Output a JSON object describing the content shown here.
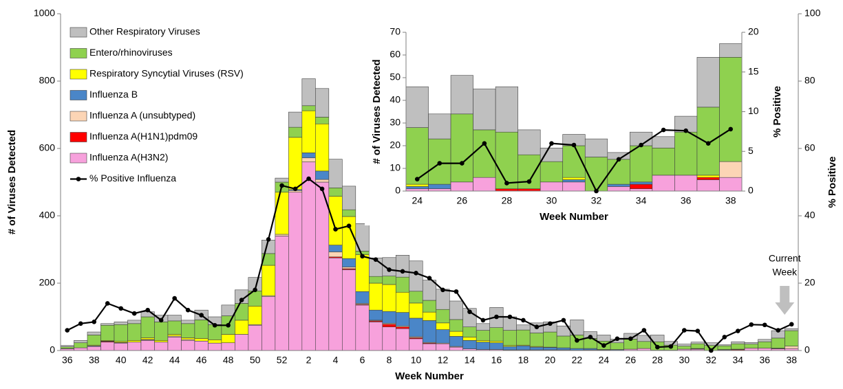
{
  "chart_data": [
    {
      "type": "bar",
      "stacked": true,
      "x_label": "Week Number",
      "y_label": "# of Viruses Detected",
      "y2_label": "% Positive",
      "annotation": [
        "Current",
        "Week"
      ],
      "legend": "upper left",
      "categories": [
        36,
        null,
        38,
        null,
        40,
        null,
        42,
        null,
        44,
        null,
        46,
        null,
        48,
        null,
        50,
        null,
        52,
        null,
        2,
        null,
        4,
        null,
        6,
        null,
        8,
        null,
        10,
        null,
        12,
        null,
        14,
        null,
        16,
        null,
        18,
        null,
        20,
        null,
        22,
        null,
        24,
        null,
        26,
        null,
        28,
        null,
        30,
        null,
        32,
        null,
        34,
        null,
        36,
        null,
        38
      ],
      "ylim": [
        0,
        1000
      ],
      "yticks": [
        0,
        200,
        400,
        600,
        800,
        1000
      ],
      "y2lim": [
        0,
        100
      ],
      "y2ticks": [
        0,
        20,
        40,
        60,
        80,
        100
      ],
      "series": [
        {
          "name": "Influenza A(H3N2)",
          "color": "#f7a1dc",
          "values": [
            5,
            8,
            12,
            25,
            22,
            25,
            30,
            25,
            40,
            30,
            28,
            22,
            23,
            48,
            75,
            160,
            340,
            470,
            560,
            500,
            275,
            240,
            135,
            85,
            70,
            65,
            35,
            20,
            20,
            10,
            5,
            3,
            3,
            2,
            2,
            2,
            2,
            2,
            1,
            2,
            1,
            1,
            4,
            6,
            0,
            0,
            4,
            4,
            0,
            2,
            1,
            7,
            7,
            5,
            6
          ]
        },
        {
          "name": "Influenza A(H1N1)pdm09",
          "color": "#ff0000",
          "values": [
            0,
            0,
            0,
            2,
            0,
            0,
            0,
            0,
            0,
            0,
            0,
            0,
            0,
            0,
            0,
            0,
            0,
            0,
            0,
            0,
            3,
            3,
            2,
            3,
            8,
            5,
            3,
            2,
            0,
            0,
            0,
            0,
            0,
            0,
            0,
            0,
            0,
            0,
            0,
            0,
            0,
            0,
            0,
            0,
            1,
            1,
            0,
            0,
            0,
            0,
            2,
            0,
            0,
            1,
            0
          ]
        },
        {
          "name": "Influenza A (unsubtyped)",
          "color": "#fcd5b5",
          "values": [
            0,
            0,
            0,
            0,
            1,
            0,
            2,
            0,
            3,
            3,
            0,
            0,
            0,
            0,
            2,
            3,
            5,
            5,
            12,
            8,
            15,
            5,
            3,
            2,
            3,
            3,
            3,
            2,
            2,
            2,
            0,
            0,
            0,
            0,
            0,
            0,
            0,
            0,
            0,
            0,
            0,
            0,
            0,
            0,
            0,
            0,
            0,
            0,
            0,
            0,
            0,
            0,
            0,
            0,
            7
          ]
        },
        {
          "name": "Influenza B",
          "color": "#4a86c8",
          "values": [
            1,
            0,
            2,
            1,
            1,
            0,
            1,
            0,
            0,
            0,
            0,
            0,
            0,
            0,
            0,
            0,
            0,
            3,
            15,
            25,
            20,
            25,
            35,
            30,
            35,
            40,
            55,
            65,
            40,
            30,
            25,
            22,
            20,
            10,
            12,
            8,
            7,
            6,
            5,
            4,
            1,
            2,
            0,
            0,
            0,
            0,
            0,
            1,
            0,
            1,
            1,
            0,
            0,
            0,
            0
          ]
        },
        {
          "name": "Respiratory Syncytial Viruses (RSV)",
          "color": "#ffff00",
          "values": [
            0,
            0,
            2,
            2,
            3,
            5,
            5,
            5,
            5,
            5,
            8,
            10,
            25,
            42,
            55,
            90,
            125,
            155,
            125,
            140,
            145,
            125,
            110,
            80,
            80,
            60,
            45,
            25,
            20,
            15,
            10,
            5,
            5,
            3,
            2,
            2,
            1,
            0,
            0,
            0,
            1,
            0,
            0,
            0,
            0,
            0,
            0,
            1,
            0,
            0,
            0,
            0,
            0,
            1,
            0
          ]
        },
        {
          "name": "Entero/rhinoviruses",
          "color": "#8fd14f",
          "values": [
            5,
            15,
            30,
            45,
            50,
            50,
            62,
            55,
            40,
            42,
            55,
            45,
            55,
            50,
            45,
            35,
            30,
            30,
            15,
            20,
            25,
            20,
            10,
            20,
            25,
            45,
            35,
            35,
            40,
            35,
            30,
            30,
            40,
            45,
            45,
            40,
            45,
            35,
            40,
            30,
            25,
            20,
            30,
            21,
            25,
            15,
            9,
            14,
            15,
            11,
            16,
            12,
            19,
            30,
            46
          ]
        },
        {
          "name": "Other Respiratory Viruses",
          "color": "#bfbfbf",
          "values": [
            4,
            7,
            9,
            5,
            8,
            10,
            15,
            20,
            17,
            10,
            29,
            23,
            32,
            40,
            40,
            40,
            12,
            45,
            80,
            85,
            85,
            70,
            82,
            55,
            55,
            65,
            90,
            60,
            60,
            55,
            55,
            20,
            60,
            40,
            15,
            30,
            30,
            30,
            45,
            20,
            18,
            11,
            17,
            18,
            20,
            11,
            6,
            5,
            8,
            3,
            6,
            5,
            7,
            22,
            6
          ]
        },
        {
          "name": "% Positive Influenza",
          "type": "line",
          "axis": "y2",
          "color": "#000000",
          "values": [
            6,
            8,
            8.5,
            14,
            12.5,
            11,
            12,
            9,
            15.5,
            12,
            10.5,
            7.5,
            7.5,
            15,
            18,
            33,
            49,
            48,
            51,
            48,
            36,
            37,
            28,
            27,
            24,
            23.5,
            23,
            21.5,
            18,
            17.5,
            11.5,
            9,
            10,
            10,
            9,
            7,
            8,
            9,
            3,
            4,
            1.5,
            3.5,
            3.5,
            6,
            1,
            1.2,
            6,
            5.8,
            0,
            4,
            5.8,
            7.7,
            7.6,
            6,
            7.8
          ]
        }
      ]
    },
    {
      "type": "bar",
      "stacked": true,
      "x_label": "Week Number",
      "y_label": "# of Viruses Detected",
      "y2_label": "% Positive",
      "categories": [
        24,
        null,
        26,
        null,
        28,
        null,
        30,
        null,
        32,
        null,
        34,
        null,
        36,
        null,
        38
      ],
      "ylim": [
        0,
        70
      ],
      "yticks": [
        0,
        10,
        20,
        30,
        40,
        50,
        60,
        70
      ],
      "y2lim": [
        0,
        20
      ],
      "y2ticks": [
        0,
        5,
        10,
        15,
        20
      ],
      "series": [
        {
          "color": "#f7a1dc",
          "values": [
            1,
            1,
            4,
            6,
            0,
            0,
            4,
            4,
            0,
            2,
            1,
            7,
            7,
            5,
            6
          ]
        },
        {
          "color": "#ff0000",
          "values": [
            0,
            0,
            0,
            0,
            1,
            1,
            0,
            0,
            0,
            0,
            2,
            0,
            0,
            1,
            0
          ]
        },
        {
          "color": "#fcd5b5",
          "values": [
            0,
            0,
            0,
            0,
            0,
            0,
            0,
            0,
            0,
            0,
            0,
            0,
            0,
            0,
            7
          ]
        },
        {
          "color": "#4a86c8",
          "values": [
            1,
            2,
            0,
            0,
            0,
            0,
            0,
            1,
            0,
            1,
            1,
            0,
            0,
            0,
            0
          ]
        },
        {
          "color": "#ffff00",
          "values": [
            1,
            0,
            0,
            0,
            0,
            0,
            0,
            1,
            0,
            0,
            0,
            0,
            0,
            1,
            0
          ]
        },
        {
          "color": "#8fd14f",
          "values": [
            25,
            20,
            30,
            21,
            25,
            15,
            9,
            14,
            15,
            11,
            16,
            12,
            19,
            30,
            46
          ]
        },
        {
          "color": "#bfbfbf",
          "values": [
            18,
            11,
            17,
            18,
            20,
            11,
            6,
            5,
            8,
            3,
            6,
            5,
            7,
            22,
            6
          ]
        },
        {
          "type": "line",
          "axis": "y2",
          "color": "#000000",
          "values": [
            1.5,
            3.5,
            3.5,
            6,
            1,
            1.2,
            6,
            5.8,
            0,
            4,
            5.8,
            7.7,
            7.6,
            6,
            7.8
          ]
        }
      ]
    }
  ]
}
